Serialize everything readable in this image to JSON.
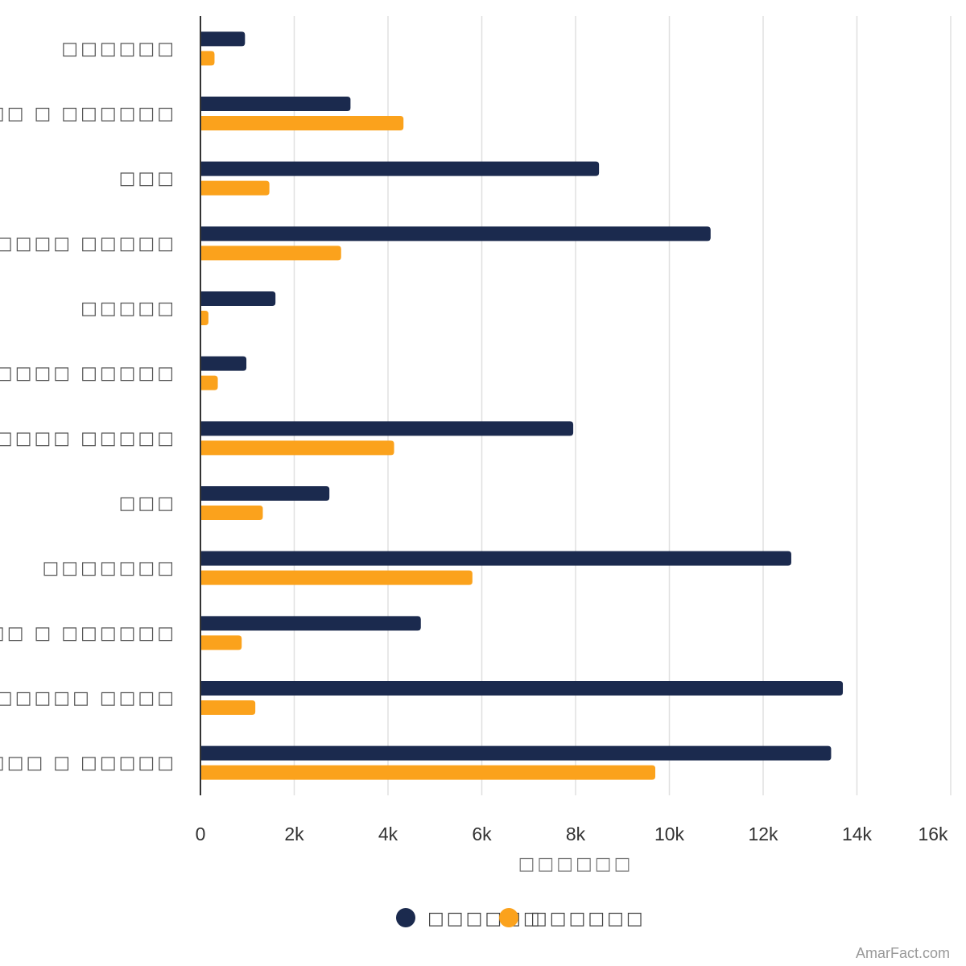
{
  "chart_data": {
    "type": "bar",
    "orientation": "horizontal",
    "categories": [
      "□□□□□□",
      "□□□□□□ □ □□□□□□",
      "□□□",
      "□□□□□□□□ □□□□□",
      "□□□□□",
      "□□□□□□□ □ □□□□□□ □□□□□",
      "□□□□□ □□□□□",
      "□□□",
      "□□□□□□□",
      "□□□□□□ □ □□□□□□",
      "□□□□□ □□□□",
      "□□□□□□□□ □ □□□□□"
    ],
    "series": [
      {
        "name": "□□□□□□",
        "color": "#1b2a4e",
        "values": [
          950,
          3200,
          8500,
          10880,
          1600,
          980,
          7950,
          2750,
          12600,
          4700,
          13700,
          13450
        ]
      },
      {
        "name": "□□□□□□",
        "color": "#fba21c",
        "values": [
          300,
          4330,
          1470,
          3000,
          170,
          370,
          4130,
          1330,
          5800,
          880,
          1170,
          9700
        ]
      }
    ],
    "xlabel": "□□□□□□",
    "ylabel": "",
    "xlim": [
      0,
      16000
    ],
    "xticks": [
      0,
      2000,
      4000,
      6000,
      8000,
      10000,
      12000,
      14000,
      16000
    ],
    "xtick_labels": [
      "0",
      "2k",
      "4k",
      "6k",
      "8k",
      "10k",
      "12k",
      "14k",
      "16k"
    ],
    "grid": "vertical",
    "legend_position": "bottom"
  },
  "watermark": "AmarFact.com"
}
